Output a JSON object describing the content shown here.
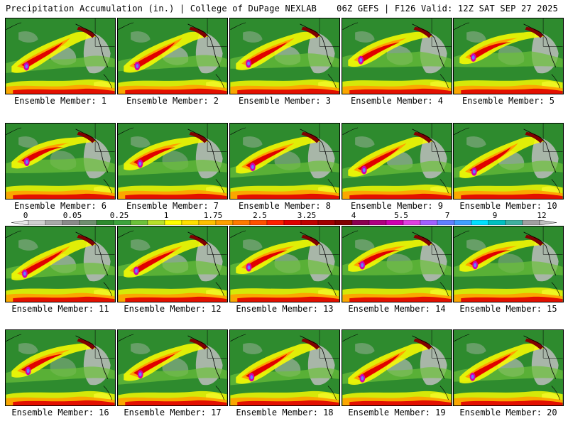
{
  "header": {
    "left_title": "Precipitation Accumulation (in.) | College of DuPage NEXLAB",
    "right_title": "06Z GEFS | F126 Valid: 12Z SAT SEP 27 2025"
  },
  "panels": [
    {
      "label": "Ensemble Member: 1"
    },
    {
      "label": "Ensemble Member: 2"
    },
    {
      "label": "Ensemble Member: 3"
    },
    {
      "label": "Ensemble Member: 4"
    },
    {
      "label": "Ensemble Member: 5"
    },
    {
      "label": "Ensemble Member: 6"
    },
    {
      "label": "Ensemble Member: 7"
    },
    {
      "label": "Ensemble Member: 8"
    },
    {
      "label": "Ensemble Member: 9"
    },
    {
      "label": "Ensemble Member: 10"
    },
    {
      "label": "Ensemble Member: 11"
    },
    {
      "label": "Ensemble Member: 12"
    },
    {
      "label": "Ensemble Member: 13"
    },
    {
      "label": "Ensemble Member: 14"
    },
    {
      "label": "Ensemble Member: 15"
    },
    {
      "label": "Ensemble Member: 16"
    },
    {
      "label": "Ensemble Member: 17"
    },
    {
      "label": "Ensemble Member: 18"
    },
    {
      "label": "Ensemble Member: 19"
    },
    {
      "label": "Ensemble Member: 20"
    }
  ],
  "colorbar": {
    "ticks": [
      "0",
      "0.05",
      "0.25",
      "1",
      "1.75",
      "2.5",
      "3.25",
      "4",
      "5.5",
      "7",
      "9",
      "12"
    ],
    "colors": [
      "#e8e8e8",
      "#cfcfcf",
      "#a9a9a9",
      "#8a8a8a",
      "#6e8f6e",
      "#2e8b2e",
      "#3da33d",
      "#6cc13a",
      "#b8e02a",
      "#ffff00",
      "#ffdf00",
      "#ffbf00",
      "#ff9f00",
      "#ff7a00",
      "#ff5000",
      "#ff2000",
      "#e00000",
      "#c00000",
      "#a00000",
      "#800000",
      "#8b0050",
      "#b00080",
      "#d000b0",
      "#e040e0",
      "#a060ff",
      "#6080ff",
      "#40a0ff",
      "#00e0ff",
      "#00c0c0",
      "#40b0a0",
      "#a0a0a0",
      "#c0c0c0"
    ]
  },
  "colors": {
    "land_bg": "#2e8b2e",
    "light_rain": "#6cc13a",
    "yellow": "#ffff00",
    "orange": "#ff9f00",
    "red": "#e00000",
    "maroon": "#800000",
    "magenta": "#d000b0",
    "blue": "#6080ff",
    "gray": "#bdbdbd",
    "white": "#ffffff"
  }
}
